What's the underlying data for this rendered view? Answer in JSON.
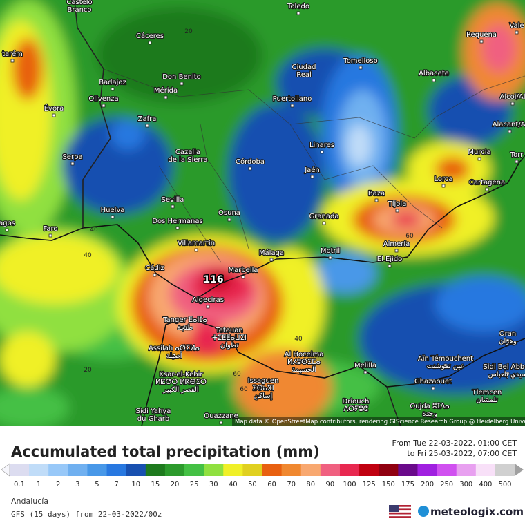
{
  "map": {
    "cities": [
      [
        "Castelo",
        "Branco"
      ],
      [
        "Toledo"
      ],
      [
        "Vale"
      ],
      [
        "Cáceres"
      ],
      [
        "Requena"
      ],
      [
        "tarém"
      ],
      [
        "Tomelloso"
      ],
      [
        "Ciudad",
        "Real"
      ],
      [
        "Badajoz"
      ],
      [
        "Don Benito"
      ],
      [
        "Albacete"
      ],
      [
        "Mérida"
      ],
      [
        "Olivenza"
      ],
      [
        "Alcoi/Al"
      ],
      [
        "Évora"
      ],
      [
        "Puertollano"
      ],
      [
        "Zafra"
      ],
      [
        "Alacant/Al"
      ],
      [
        "Linares"
      ],
      [
        "Murcia"
      ],
      [
        "Serpa"
      ],
      [
        "Cazalla",
        "de la Sierra"
      ],
      [
        "Córdoba"
      ],
      [
        "Jaén"
      ],
      [
        "Torr"
      ],
      [
        "Lorca"
      ],
      [
        "Cartagena"
      ],
      [
        "Baza"
      ],
      [
        "Sevilla"
      ],
      [
        "Huelva"
      ],
      [
        "Tíjola"
      ],
      [
        "Faro"
      ],
      [
        "Dos Hermanas"
      ],
      [
        "Osuna"
      ],
      [
        "Granada"
      ],
      [
        "agos"
      ],
      [
        "Villamartín"
      ],
      [
        "Almería"
      ],
      [
        "Cádiz"
      ],
      [
        "Málaga"
      ],
      [
        "Motril"
      ],
      [
        "El Ejido"
      ],
      [
        "Marbella"
      ],
      [
        "Algeciras"
      ],
      [
        "Tanger ⵟⴰⵏⵊⴰ",
        "طنجة"
      ],
      [
        "Tetouan",
        "ⵜⵉⵟⵟⴰⵡⵉⵏ",
        "تطوان"
      ],
      [
        "Oran",
        "وهران"
      ],
      [
        "Assilah ⴰⵚⵉⵍⴰ",
        "أصيلة"
      ],
      [
        "Al Hoceima",
        "ⵍⵃⵓⵙⵉⵎⴰ",
        "الحسيمة"
      ],
      [
        "Aïn Témouchent",
        "عين تموشنت"
      ],
      [
        "Sidi Bel Abbès",
        "سيدي بلعباس"
      ],
      [
        "Ksar-el-Kebir",
        "ⵍⵇⵚⵔ ⵍⴽⴱⵉⵔ",
        "القصر الكبير"
      ],
      [
        "Melilla"
      ],
      [
        "Issaguen",
        "ⵉⵙⴰⴳⵏ",
        "إساكن"
      ],
      [
        "Ghazaouet"
      ],
      [
        "Tlemcen",
        "تلمسان"
      ],
      [
        "Driouch",
        "ⴷⵔⵢⵓⵛ"
      ],
      [
        "Oujda ⵓⵊⴷⴰ",
        "وجدة"
      ],
      [
        "Sidi Yahya",
        "du Gharb"
      ],
      [
        "Ouazzane"
      ]
    ],
    "contour_labels": [
      20,
      40,
      40,
      20,
      60,
      60,
      60,
      40
    ],
    "peak_label": 116,
    "attribution": "Map data © OpenStreetMap contributors, rendering GIScience Research Group @ Heidelberg University"
  },
  "footer": {
    "title": "Accumulated total precipitation (mm)",
    "period_from": "From Tue 22-03-2022, 01:00 CET",
    "period_to": "to Fri 25-03-2022, 07:00 CET",
    "region": "Andalucía",
    "model": "GFS (15 days) from  22-03-2022/00z",
    "brand": "meteologix.com"
  },
  "legend": {
    "labels": [
      0.1,
      1,
      2,
      3,
      5,
      7,
      10,
      15,
      20,
      25,
      30,
      40,
      50,
      60,
      70,
      80,
      90,
      100,
      125,
      150,
      175,
      200,
      250,
      300,
      400,
      500
    ],
    "colors": [
      "#dcdcf0",
      "#c0dcf8",
      "#98c8f8",
      "#70b0f0",
      "#4898e8",
      "#2878e0",
      "#1850b0",
      "#1e7a1e",
      "#2c9a2c",
      "#44c044",
      "#90e040",
      "#f0f028",
      "#e0d020",
      "#e86010",
      "#f08830",
      "#f8a870",
      "#f06080",
      "#e82850",
      "#c00010",
      "#900010",
      "#6a0a8a",
      "#a020e0",
      "#d050f0",
      "#e8a0f0",
      "#f8e0f8",
      "#d0d0d0"
    ],
    "below_color": "#f6f6fc",
    "above_color": "#a0a0a0"
  }
}
